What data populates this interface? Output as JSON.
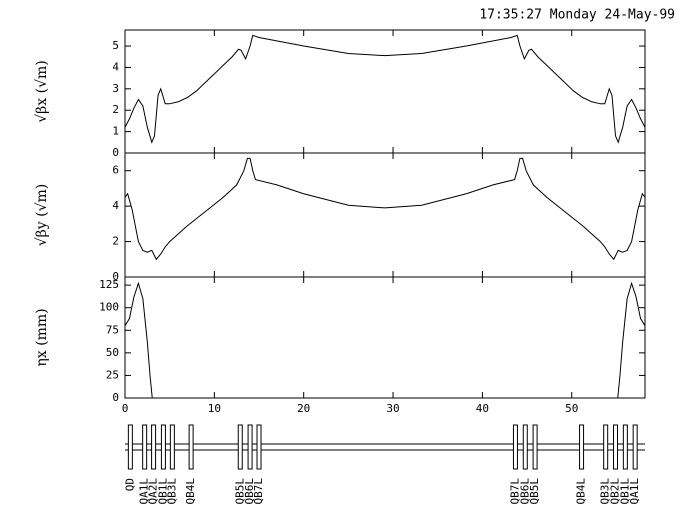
{
  "timestamp": "17:35:27 Monday 24-May-99",
  "chart_data": [
    {
      "type": "line",
      "ylabel": "√βx (√m)",
      "color": "#000000",
      "x": [
        0,
        0.5,
        1,
        1.5,
        2,
        2.5,
        3,
        3.3,
        3.7,
        4,
        4.5,
        5,
        6,
        7,
        8,
        9,
        10,
        11,
        12,
        12.7,
        13,
        13.5,
        14,
        14.3,
        15,
        20,
        25,
        29.1,
        33.2,
        38.2,
        43.2,
        43.9,
        44.2,
        44.7,
        45.2,
        45.5,
        46.2,
        47.2,
        48.2,
        49.2,
        50.2,
        51.2,
        52.2,
        53.2,
        53.7,
        54.2,
        54.5,
        54.9,
        55.2,
        55.7,
        56.2,
        56.7,
        57.2,
        57.7,
        58.2
      ],
      "values": [
        1.2,
        1.6,
        2.1,
        2.5,
        2.2,
        1.2,
        0.5,
        0.8,
        2.7,
        3.0,
        2.3,
        2.3,
        2.4,
        2.6,
        2.9,
        3.3,
        3.7,
        4.1,
        4.5,
        4.85,
        4.8,
        4.4,
        5.0,
        5.5,
        5.4,
        5.0,
        4.65,
        4.55,
        4.65,
        5.0,
        5.4,
        5.5,
        5.0,
        4.4,
        4.8,
        4.85,
        4.5,
        4.1,
        3.7,
        3.3,
        2.9,
        2.6,
        2.4,
        2.3,
        2.3,
        3.0,
        2.7,
        0.8,
        0.5,
        1.2,
        2.2,
        2.5,
        2.1,
        1.6,
        1.2
      ],
      "xlim": [
        0,
        58.2
      ],
      "ylim": [
        0,
        5.75
      ],
      "yticks": [
        0,
        1,
        2,
        3,
        4,
        5
      ]
    },
    {
      "type": "line",
      "ylabel": "√βy (√m)",
      "color": "#000000",
      "x": [
        0,
        0.3,
        0.8,
        1.5,
        2,
        2.5,
        3,
        3.5,
        4,
        4.5,
        5,
        7,
        9,
        11,
        12.5,
        13.3,
        13.7,
        14,
        14.3,
        14.6,
        17,
        20,
        25,
        29.1,
        33.2,
        38.2,
        41.2,
        43.6,
        43.9,
        44.2,
        44.5,
        44.9,
        45.7,
        47.2,
        49.2,
        51.2,
        53.2,
        53.7,
        54.2,
        54.7,
        55.2,
        55.7,
        56.2,
        56.7,
        57.4,
        57.9,
        58.2
      ],
      "values": [
        4.5,
        4.7,
        3.8,
        2.0,
        1.5,
        1.4,
        1.5,
        1.0,
        1.3,
        1.7,
        2.0,
        2.9,
        3.7,
        4.5,
        5.2,
        6.0,
        6.7,
        6.7,
        6.0,
        5.5,
        5.2,
        4.7,
        4.05,
        3.9,
        4.05,
        4.7,
        5.2,
        5.5,
        6.0,
        6.7,
        6.7,
        6.0,
        5.2,
        4.5,
        3.7,
        2.9,
        2.0,
        1.7,
        1.3,
        1.0,
        1.5,
        1.4,
        1.5,
        2.0,
        3.8,
        4.7,
        4.5
      ],
      "xlim": [
        0,
        58.2
      ],
      "ylim": [
        0,
        7
      ],
      "yticks": [
        0,
        2,
        4,
        6
      ]
    },
    {
      "type": "line",
      "ylabel": "ηx (mm)",
      "color": "#000000",
      "x": [
        0,
        0.5,
        1,
        1.5,
        2,
        2.5,
        2.8,
        3.05,
        29.1,
        55.15,
        55.4,
        55.7,
        56.2,
        56.7,
        57.2,
        57.7,
        58.2
      ],
      "values": [
        80,
        88,
        112,
        127,
        110,
        62,
        25,
        0,
        null,
        0,
        25,
        62,
        110,
        127,
        112,
        88,
        80
      ],
      "xlim": [
        0,
        58.2
      ],
      "ylim": [
        0,
        134
      ],
      "yticks": [
        0,
        25,
        50,
        75,
        100,
        125
      ],
      "xticks": [
        0,
        10,
        20,
        30,
        40,
        50
      ]
    }
  ],
  "lattice": [
    {
      "label": "QD",
      "s": 0.6
    },
    {
      "label": "QA1L",
      "s": 2.2
    },
    {
      "label": "QA2L",
      "s": 3.2
    },
    {
      "label": "QB1L",
      "s": 4.3
    },
    {
      "label": "QB3L",
      "s": 5.3
    },
    {
      "label": "QB4L",
      "s": 7.4
    },
    {
      "label": "QB5L",
      "s": 12.9
    },
    {
      "label": "QB6L",
      "s": 14.0
    },
    {
      "label": "QB7L",
      "s": 15.0
    },
    {
      "label": "QB7L",
      "s": 43.7
    },
    {
      "label": "QB6L",
      "s": 44.8
    },
    {
      "label": "QB5L",
      "s": 45.9
    },
    {
      "label": "QB4L",
      "s": 51.1
    },
    {
      "label": "QB3L",
      "s": 53.8
    },
    {
      "label": "QB2L",
      "s": 54.9
    },
    {
      "label": "QB1L",
      "s": 56.0
    },
    {
      "label": "QA1L",
      "s": 57.1
    }
  ]
}
